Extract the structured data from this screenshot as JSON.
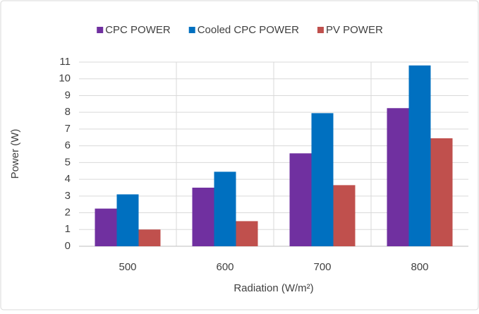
{
  "chart_data": {
    "type": "bar",
    "categories": [
      "500",
      "600",
      "700",
      "800"
    ],
    "series": [
      {
        "name": "CPC POWER",
        "color": "#7030a0",
        "values": [
          2.25,
          3.5,
          5.55,
          8.25
        ]
      },
      {
        "name": "Cooled CPC POWER",
        "color": "#0070c0",
        "values": [
          3.1,
          4.45,
          7.95,
          10.8
        ]
      },
      {
        "name": "PV POWER",
        "color": "#c0504d",
        "values": [
          1.0,
          1.5,
          3.65,
          6.45
        ]
      }
    ],
    "ylim": [
      0,
      11
    ],
    "yticks": [
      0,
      1,
      2,
      3,
      4,
      5,
      6,
      7,
      8,
      9,
      10,
      11
    ],
    "ylabel": "Power (W)",
    "xlabel": "Radiation (W/m²)",
    "grid": true,
    "legend": "top"
  }
}
